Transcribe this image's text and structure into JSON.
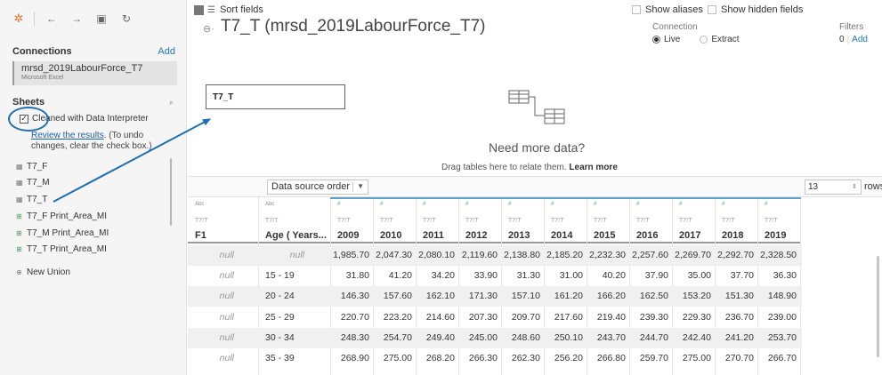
{
  "toolbar": {
    "logo_icon": "tableau-logo-icon",
    "back_icon": "←",
    "forward_icon": "→",
    "save_icon": "▣",
    "refresh_icon": "↻"
  },
  "connections": {
    "title": "Connections",
    "add_label": "Add",
    "item": {
      "name": "mrsd_2019LabourForce_T7",
      "type": "Microsoft Excel"
    }
  },
  "sheets": {
    "title": "Sheets",
    "search_icon": "⌕",
    "interpreter": {
      "checked": "✓",
      "label": "Cleaned with Data Interpreter",
      "review_link": "Review the results",
      "review_rest": ". (To undo changes, clear the check box.)"
    },
    "items": [
      {
        "icon": "▦",
        "label": "T7_F"
      },
      {
        "icon": "▦",
        "label": "T7_M"
      },
      {
        "icon": "▦",
        "label": "T7_T"
      },
      {
        "icon": "⊞",
        "label": "T7_F Print_Area_MI"
      },
      {
        "icon": "⊞",
        "label": "T7_M Print_Area_MI"
      },
      {
        "icon": "⊞",
        "label": "T7_T Print_Area_MI"
      }
    ],
    "new_union": {
      "icon": "⊕",
      "label": "New Union"
    }
  },
  "datasource": {
    "icon": "⊖·",
    "title": "T7_T (mrsd_2019LabourForce_T7)"
  },
  "connection_mode": {
    "label": "Connection",
    "live": "Live",
    "extract": "Extract"
  },
  "filters": {
    "label": "Filters",
    "count": "0",
    "divider": "|",
    "add": "Add"
  },
  "canvas": {
    "table_name": "T7_T",
    "need_title": "Need more data?",
    "need_sub": "Drag tables here to relate them.",
    "learn_more": "Learn more"
  },
  "grid_toolbar": {
    "sort_label": "Sort fields",
    "sort_value": "Data source order",
    "sort_caret": "▼",
    "show_aliases": "Show aliases",
    "show_hidden": "Show hidden fields",
    "rows_value": "13",
    "rows_spin": "⇕",
    "rows_label": "rows"
  },
  "grid": {
    "columns": [
      {
        "type": "Abc",
        "source": "T7!T",
        "name": "F1"
      },
      {
        "type": "Abc",
        "source": "T7!T",
        "name": "Age ( Years..."
      },
      {
        "type": "#",
        "source": "T7!T",
        "name": "2009"
      },
      {
        "type": "#",
        "source": "T7!T",
        "name": "2010"
      },
      {
        "type": "#",
        "source": "T7!T",
        "name": "2011"
      },
      {
        "type": "#",
        "source": "T7!T",
        "name": "2012"
      },
      {
        "type": "#",
        "source": "T7!T",
        "name": "2013"
      },
      {
        "type": "#",
        "source": "T7!T",
        "name": "2014"
      },
      {
        "type": "#",
        "source": "T7!T",
        "name": "2015"
      },
      {
        "type": "#",
        "source": "T7!T",
        "name": "2016"
      },
      {
        "type": "#",
        "source": "T7!T",
        "name": "2017"
      },
      {
        "type": "#",
        "source": "T7!T",
        "name": "2018"
      },
      {
        "type": "#",
        "source": "T7!T",
        "name": "2019"
      }
    ],
    "rows": [
      {
        "f1": "null",
        "age": "null",
        "vals": [
          "1,985.70",
          "2,047.30",
          "2,080.10",
          "2,119.60",
          "2,138.80",
          "2,185.20",
          "2,232.30",
          "2,257.60",
          "2,269.70",
          "2,292.70",
          "2,328.50"
        ]
      },
      {
        "f1": "null",
        "age": "15   -   19",
        "vals": [
          "31.80",
          "41.20",
          "34.20",
          "33.90",
          "31.30",
          "31.00",
          "40.20",
          "37.90",
          "35.00",
          "37.70",
          "36.30"
        ]
      },
      {
        "f1": "null",
        "age": "20   -   24",
        "vals": [
          "146.30",
          "157.60",
          "162.10",
          "171.30",
          "157.10",
          "161.20",
          "166.20",
          "162.50",
          "153.20",
          "151.30",
          "148.90"
        ]
      },
      {
        "f1": "null",
        "age": "25   -   29",
        "vals": [
          "220.70",
          "223.20",
          "214.60",
          "207.30",
          "209.70",
          "217.60",
          "219.40",
          "239.30",
          "229.30",
          "236.70",
          "239.00"
        ]
      },
      {
        "f1": "null",
        "age": "30   -   34",
        "vals": [
          "248.30",
          "254.70",
          "249.40",
          "245.00",
          "248.60",
          "250.10",
          "243.70",
          "244.70",
          "242.40",
          "241.20",
          "253.70"
        ]
      },
      {
        "f1": "null",
        "age": "35   -   39",
        "vals": [
          "268.90",
          "275.00",
          "268.20",
          "266.30",
          "262.30",
          "256.20",
          "266.80",
          "259.70",
          "275.00",
          "270.70",
          "266.70"
        ]
      }
    ]
  }
}
